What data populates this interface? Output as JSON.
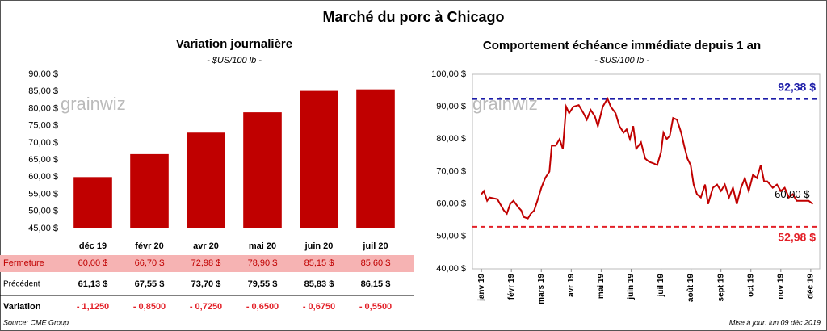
{
  "title": "Marché du porc à Chicago",
  "watermark": "grainwiz",
  "chart_data": [
    {
      "type": "bar",
      "title": "Variation journalière",
      "subtitle": "- $US/100 lb -",
      "categories": [
        "déc 19",
        "févr 20",
        "avr 20",
        "mai 20",
        "juin 20",
        "juil 20"
      ],
      "values": [
        60.0,
        66.7,
        72.98,
        78.9,
        85.15,
        85.6
      ],
      "value_labels": [
        "60,00  $",
        "66,70  $",
        "72,98  $",
        "78,90  $",
        "85,15  $",
        "85,60  $"
      ],
      "color": "#c00000",
      "ylim": [
        45,
        90
      ],
      "yticks": [
        {
          "value": 45,
          "label": "45,00 $"
        },
        {
          "value": 50,
          "label": "50,00 $"
        },
        {
          "value": 55,
          "label": "55,00 $"
        },
        {
          "value": 60,
          "label": "60,00 $"
        },
        {
          "value": 65,
          "label": "65,00 $"
        },
        {
          "value": 70,
          "label": "70,00 $"
        },
        {
          "value": 75,
          "label": "75,00 $"
        },
        {
          "value": 80,
          "label": "80,00 $"
        },
        {
          "value": 85,
          "label": "85,00 $"
        },
        {
          "value": 90,
          "label": "90,00 $"
        }
      ],
      "grid": false
    },
    {
      "type": "line",
      "title": "Comportement  échéance immédiate depuis 1 an",
      "subtitle": "- $US/100 lb -",
      "x": [
        0,
        0.08,
        0.19,
        0.27,
        0.53,
        0.75,
        0.85,
        0.96,
        1.07,
        1.23,
        1.33,
        1.41,
        1.55,
        1.65,
        1.76,
        1.87,
        2.0,
        2.13,
        2.27,
        2.35,
        2.48,
        2.61,
        2.72,
        2.83,
        2.93,
        3.07,
        3.25,
        3.41,
        3.52,
        3.65,
        3.79,
        3.89,
        4.05,
        4.21,
        4.32,
        4.48,
        4.61,
        4.75,
        4.85,
        4.96,
        5.07,
        5.17,
        5.33,
        5.47,
        5.6,
        5.76,
        5.87,
        6.0,
        6.08,
        6.19,
        6.29,
        6.4,
        6.53,
        6.67,
        6.77,
        6.88,
        6.99,
        7.09,
        7.2,
        7.33,
        7.47,
        7.57,
        7.73,
        7.87,
        8.0,
        8.13,
        8.27,
        8.4,
        8.53,
        8.67,
        8.8,
        8.93,
        9.07,
        9.2,
        9.33,
        9.44,
        9.55,
        9.73,
        9.87,
        10.0,
        10.13,
        10.27,
        10.4,
        10.53,
        10.67,
        10.8,
        10.93,
        11.07
      ],
      "values": [
        63,
        64,
        61,
        62,
        61.5,
        58,
        57,
        60,
        61,
        59,
        58,
        56,
        55.5,
        57,
        58,
        61,
        65,
        68,
        70,
        78,
        78,
        80,
        77,
        90,
        88,
        90,
        90.5,
        88,
        86,
        89,
        87,
        84,
        90,
        92.5,
        90,
        88,
        84,
        82,
        83,
        80,
        84,
        77,
        79,
        74,
        73,
        72.5,
        72,
        76,
        82,
        80,
        81,
        86.5,
        86,
        82,
        78,
        74,
        72,
        66,
        63,
        62,
        66,
        60,
        65,
        66,
        64,
        66,
        62,
        65,
        60,
        65,
        68,
        64,
        69,
        68,
        72,
        67,
        67,
        65,
        66,
        64,
        65,
        62,
        63,
        61,
        61,
        61,
        61,
        60
      ],
      "last_value_label": "60,00 $",
      "color": "#c00000",
      "xlim": [
        -0.3,
        11.3
      ],
      "xticks": [
        {
          "value": 0,
          "label": "janv 19"
        },
        {
          "value": 1,
          "label": "févr 19"
        },
        {
          "value": 2,
          "label": "mars 19"
        },
        {
          "value": 3,
          "label": "avr 19"
        },
        {
          "value": 4,
          "label": "mai 19"
        },
        {
          "value": 5,
          "label": "juin 19"
        },
        {
          "value": 6,
          "label": "juil 19"
        },
        {
          "value": 7,
          "label": "août 19"
        },
        {
          "value": 8,
          "label": "sept 19"
        },
        {
          "value": 9,
          "label": "oct 19"
        },
        {
          "value": 10,
          "label": "nov 19"
        },
        {
          "value": 11,
          "label": "déc 19"
        }
      ],
      "ylim": [
        40,
        100
      ],
      "yticks": [
        {
          "value": 40,
          "label": "40,00 $"
        },
        {
          "value": 50,
          "label": "50,00 $"
        },
        {
          "value": 60,
          "label": "60,00 $"
        },
        {
          "value": 70,
          "label": "70,00 $"
        },
        {
          "value": 80,
          "label": "80,00 $"
        },
        {
          "value": 90,
          "label": "90,00 $"
        },
        {
          "value": 100,
          "label": "100,00 $"
        }
      ],
      "reference_lines": [
        {
          "value": 92.38,
          "label": "92,38 $",
          "color": "#1c1ca8"
        },
        {
          "value": 52.98,
          "label": "52,98 $",
          "color": "#e32028"
        }
      ]
    }
  ],
  "table": {
    "closing_label": "Fermeture",
    "rows": [
      {
        "label": "Précédent",
        "cells": [
          "61,13  $",
          "67,55  $",
          "73,70  $",
          "79,55  $",
          "85,83  $",
          "86,15  $"
        ]
      },
      {
        "label": "Variation",
        "cells": [
          "- 1,1250",
          "- 0,8500",
          "- 0,7250",
          "- 0,6500",
          "- 0,6750",
          "- 0,5500"
        ]
      }
    ]
  },
  "footer": {
    "source": "Source: CME Group",
    "updated": "Mise à jour: lun 09 déc 2019"
  }
}
